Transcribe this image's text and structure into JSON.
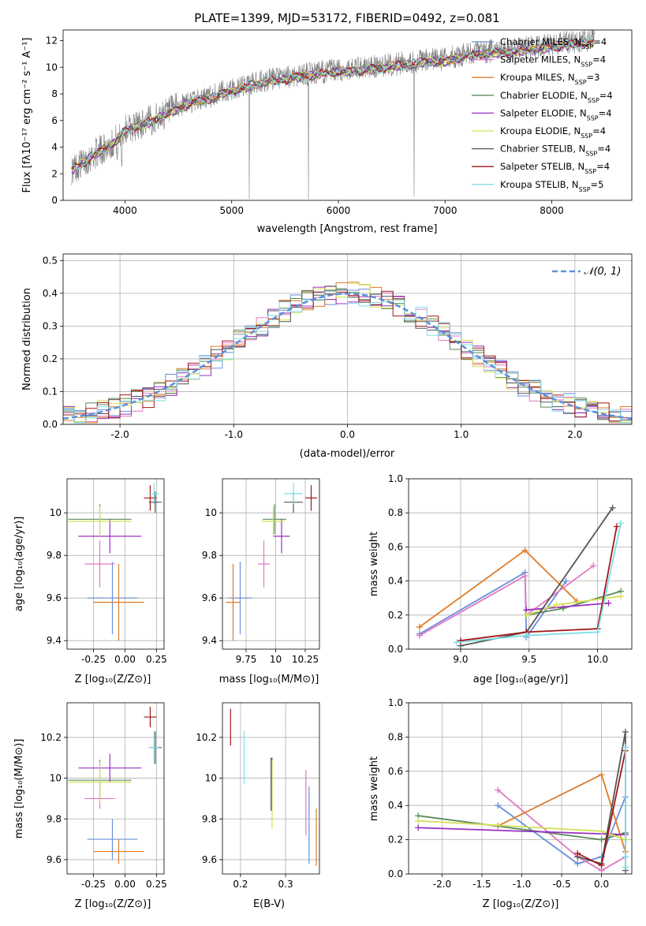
{
  "chart_data": [
    {
      "id": "spectrum",
      "type": "line",
      "title": "PLATE=1399, MJD=53172, FIBERID=0492, z=0.081",
      "xlabel": "wavelength [Angstrom, rest frame]",
      "ylabel": "Flux [fλ10⁻¹⁷ erg cm⁻² s⁻¹ A⁻¹]",
      "xlim": [
        3420,
        8750
      ],
      "ylim": [
        0,
        12.8
      ],
      "xticks": [
        4000,
        5000,
        6000,
        7000,
        8000
      ],
      "yticks": [
        0,
        2,
        4,
        6,
        8,
        10,
        12
      ],
      "grid": false,
      "legend_position": "top-right",
      "observed_color": "#808080",
      "observed": {
        "x": [
          3500,
          3600,
          3700,
          3800,
          3900,
          4000,
          4100,
          4200,
          4300,
          4400,
          4500,
          4600,
          4700,
          4800,
          4900,
          5000,
          5100,
          5200,
          5300,
          5400,
          5500,
          5600,
          5700,
          5800,
          5900,
          6000,
          6100,
          6200,
          6300,
          6400,
          6500,
          6600,
          6700,
          6800,
          6900,
          7000,
          7100,
          7200,
          7300,
          7400,
          7500,
          7600,
          7700,
          7800,
          7900,
          8000,
          8100,
          8200,
          8300,
          8400
        ],
        "y": [
          2.3,
          2.8,
          3.4,
          3.9,
          4.4,
          5.3,
          5.6,
          5.9,
          6.2,
          6.6,
          7.0,
          7.4,
          7.6,
          7.8,
          8.1,
          8.3,
          8.5,
          8.8,
          9.0,
          9.1,
          9.2,
          9.4,
          9.5,
          9.6,
          9.7,
          9.8,
          9.8,
          9.9,
          10.0,
          10.1,
          10.2,
          10.3,
          10.4,
          10.5,
          10.6,
          10.6,
          10.8,
          11.0,
          11.1,
          11.2,
          11.2,
          11.3,
          11.4,
          11.5,
          11.6,
          11.7,
          11.8,
          11.9,
          12.0,
          12.1
        ]
      },
      "legend": [
        {
          "label": "Chabrier MILES, N",
          "sub": "SSP",
          "suffix": "=4",
          "color": "#6a8fd8"
        },
        {
          "label": "Salpeter MILES, N",
          "sub": "SSP",
          "suffix": "=4",
          "color": "#e377c2"
        },
        {
          "label": "Kroupa MILES, N",
          "sub": "SSP",
          "suffix": "=3",
          "color": "#e07b28"
        },
        {
          "label": "Chabrier ELODIE, N",
          "sub": "SSP",
          "suffix": "=4",
          "color": "#5b8a5b"
        },
        {
          "label": "Salpeter ELODIE, N",
          "sub": "SSP",
          "suffix": "=4",
          "color": "#9b30c0"
        },
        {
          "label": "Kroupa ELODIE, N",
          "sub": "SSP",
          "suffix": "=4",
          "color": "#d4e157"
        },
        {
          "label": "Chabrier STELIB, N",
          "sub": "SSP",
          "suffix": "=4",
          "color": "#555555"
        },
        {
          "label": "Salpeter STELIB, N",
          "sub": "SSP",
          "suffix": "=4",
          "color": "#a01818"
        },
        {
          "label": "Kroupa STELIB, N",
          "sub": "SSP",
          "suffix": "=5",
          "color": "#7fdde6"
        }
      ]
    },
    {
      "id": "residuals",
      "type": "line",
      "xlabel": "(data-model)/error",
      "ylabel": "Normed distribution",
      "xlim": [
        -2.5,
        2.5
      ],
      "ylim": [
        0,
        0.52
      ],
      "xticks": [
        -2,
        -1,
        0,
        1,
        2
      ],
      "yticks": [
        0.0,
        0.1,
        0.2,
        0.3,
        0.4,
        0.5
      ],
      "grid": true,
      "legend_position": "top-right",
      "gaussian_label": "𝒩(0, 1)",
      "gaussian_color": "#5b8fd8"
    },
    {
      "id": "age_vs_Z",
      "type": "scatter",
      "xlabel": "Z [log₁₀(Z/Z⊙)]",
      "ylabel": "age  [log₁₀(age/yr)]",
      "xlim": [
        -0.46,
        0.31
      ],
      "ylim": [
        9.36,
        10.16
      ],
      "xticks": [
        -0.25,
        0.0,
        0.25
      ],
      "yticks": [
        9.4,
        9.6,
        9.8,
        10.0
      ],
      "grid": true,
      "points": [
        {
          "color": "#6a8fd8",
          "x": -0.1,
          "y": 9.6,
          "xerr": 0.2,
          "yerr": 0.17
        },
        {
          "color": "#e377c2",
          "x": -0.2,
          "y": 9.76,
          "xerr": 0.12,
          "yerr": 0.11
        },
        {
          "color": "#e07b28",
          "x": -0.05,
          "y": 9.58,
          "xerr": 0.2,
          "yerr": 0.18
        },
        {
          "color": "#5b8a5b",
          "x": -0.2,
          "y": 9.97,
          "xerr": 0.25,
          "yerr": 0.07
        },
        {
          "color": "#9b30c0",
          "x": -0.12,
          "y": 9.89,
          "xerr": 0.25,
          "yerr": 0.08
        },
        {
          "color": "#d4e157",
          "x": -0.2,
          "y": 9.96,
          "xerr": 0.25,
          "yerr": 0.07
        },
        {
          "color": "#555555",
          "x": 0.24,
          "y": 10.05,
          "xerr": 0.05,
          "yerr": 0.05
        },
        {
          "color": "#a01818",
          "x": 0.2,
          "y": 10.07,
          "xerr": 0.05,
          "yerr": 0.06
        },
        {
          "color": "#7fdde6",
          "x": 0.23,
          "y": 10.09,
          "xerr": 0.04,
          "yerr": 0.05
        }
      ]
    },
    {
      "id": "age_vs_mass",
      "type": "scatter",
      "xlabel": "mass [log₁₀(M/M⊙)]",
      "ylabel": "",
      "xlim": [
        9.55,
        10.37
      ],
      "ylim": [
        9.36,
        10.16
      ],
      "xticks": [
        9.75,
        10.0,
        10.25
      ],
      "yticks": [
        9.4,
        9.6,
        9.8,
        10.0
      ],
      "grid": true,
      "points": [
        {
          "color": "#6a8fd8",
          "x": 9.7,
          "y": 9.6,
          "xerr": 0.1,
          "yerr": 0.17
        },
        {
          "color": "#e377c2",
          "x": 9.9,
          "y": 9.76,
          "xerr": 0.05,
          "yerr": 0.11
        },
        {
          "color": "#e07b28",
          "x": 9.64,
          "y": 9.58,
          "xerr": 0.06,
          "yerr": 0.18
        },
        {
          "color": "#5b8a5b",
          "x": 9.99,
          "y": 9.97,
          "xerr": 0.1,
          "yerr": 0.07
        },
        {
          "color": "#9b30c0",
          "x": 10.05,
          "y": 9.89,
          "xerr": 0.07,
          "yerr": 0.08
        },
        {
          "color": "#d4e157",
          "x": 9.98,
          "y": 9.96,
          "xerr": 0.1,
          "yerr": 0.07
        },
        {
          "color": "#555555",
          "x": 10.15,
          "y": 10.05,
          "xerr": 0.08,
          "yerr": 0.05
        },
        {
          "color": "#a01818",
          "x": 10.3,
          "y": 10.07,
          "xerr": 0.05,
          "yerr": 0.06
        },
        {
          "color": "#7fdde6",
          "x": 10.15,
          "y": 10.09,
          "xerr": 0.08,
          "yerr": 0.05
        }
      ]
    },
    {
      "id": "weight_vs_age",
      "type": "line",
      "xlabel": "age  [log₁₀(age/yr)]",
      "ylabel": "mass weight",
      "xlim": [
        8.62,
        10.25
      ],
      "ylim": [
        0,
        1.0
      ],
      "xticks": [
        9.0,
        9.5,
        10.0
      ],
      "yticks": [
        0.0,
        0.2,
        0.4,
        0.6,
        0.8,
        1.0
      ],
      "grid": true,
      "series": [
        {
          "color": "#6a8fd8",
          "x": [
            8.7,
            9.47,
            9.48,
            9.77
          ],
          "y": [
            0.09,
            0.45,
            0.07,
            0.4
          ]
        },
        {
          "color": "#e377c2",
          "x": [
            8.7,
            9.47,
            9.48,
            9.97
          ],
          "y": [
            0.08,
            0.43,
            0.2,
            0.49
          ]
        },
        {
          "color": "#e07b28",
          "x": [
            8.7,
            9.47,
            9.85
          ],
          "y": [
            0.13,
            0.58,
            0.28
          ]
        },
        {
          "color": "#5b8a5b",
          "x": [
            9.48,
            9.75,
            10.17
          ],
          "y": [
            0.2,
            0.24,
            0.34
          ]
        },
        {
          "color": "#9b30c0",
          "x": [
            9.48,
            10.08
          ],
          "y": [
            0.23,
            0.27
          ]
        },
        {
          "color": "#d4e157",
          "x": [
            9.48,
            9.7,
            10.17
          ],
          "y": [
            0.2,
            0.26,
            0.31
          ]
        },
        {
          "color": "#555555",
          "x": [
            9.0,
            9.48,
            10.11
          ],
          "y": [
            0.02,
            0.1,
            0.83
          ]
        },
        {
          "color": "#a01818",
          "x": [
            9.0,
            9.48,
            10.0,
            10.14
          ],
          "y": [
            0.05,
            0.1,
            0.12,
            0.72
          ]
        },
        {
          "color": "#7fdde6",
          "x": [
            8.97,
            9.48,
            10.0,
            10.17
          ],
          "y": [
            0.04,
            0.08,
            0.1,
            0.74
          ]
        }
      ]
    },
    {
      "id": "mass_vs_Z",
      "type": "scatter",
      "xlabel": "Z [log₁₀(Z/Z⊙)]",
      "ylabel": "mass [log₁₀(M/M⊙)]",
      "xlim": [
        -0.46,
        0.31
      ],
      "ylim": [
        9.53,
        10.37
      ],
      "xticks": [
        -0.25,
        0.0,
        0.25
      ],
      "yticks": [
        9.6,
        9.8,
        10.0,
        10.2
      ],
      "grid": true,
      "points": [
        {
          "color": "#6a8fd8",
          "x": -0.1,
          "y": 9.7,
          "xerr": 0.2,
          "yerr": 0.1
        },
        {
          "color": "#e377c2",
          "x": -0.2,
          "y": 9.9,
          "xerr": 0.12,
          "yerr": 0.05
        },
        {
          "color": "#e07b28",
          "x": -0.05,
          "y": 9.64,
          "xerr": 0.2,
          "yerr": 0.06
        },
        {
          "color": "#5b8a5b",
          "x": -0.2,
          "y": 9.99,
          "xerr": 0.25,
          "yerr": 0.1
        },
        {
          "color": "#9b30c0",
          "x": -0.12,
          "y": 10.05,
          "xerr": 0.25,
          "yerr": 0.07
        },
        {
          "color": "#d4e157",
          "x": -0.2,
          "y": 9.98,
          "xerr": 0.25,
          "yerr": 0.1
        },
        {
          "color": "#555555",
          "x": 0.24,
          "y": 10.15,
          "xerr": 0.05,
          "yerr": 0.08
        },
        {
          "color": "#a01818",
          "x": 0.2,
          "y": 10.3,
          "xerr": 0.05,
          "yerr": 0.05
        },
        {
          "color": "#7fdde6",
          "x": 0.23,
          "y": 10.15,
          "xerr": 0.04,
          "yerr": 0.08
        }
      ]
    },
    {
      "id": "mass_vs_ebv",
      "type": "scatter",
      "xlabel": "E(B-V)",
      "ylabel": "",
      "xlim": [
        0.16,
        0.375
      ],
      "ylim": [
        9.53,
        10.37
      ],
      "xticks": [
        0.2,
        0.3
      ],
      "yticks": [
        9.6,
        9.8,
        10.0,
        10.2
      ],
      "grid": true,
      "points": [
        {
          "color": "#6a8fd8",
          "x": 0.352,
          "y": 9.77,
          "xerr": 0,
          "yerr": 0.19
        },
        {
          "color": "#e377c2",
          "x": 0.345,
          "y": 9.88,
          "xerr": 0,
          "yerr": 0.16
        },
        {
          "color": "#e07b28",
          "x": 0.368,
          "y": 9.71,
          "xerr": 0,
          "yerr": 0.14
        },
        {
          "color": "#5b8a5b",
          "x": 0.268,
          "y": 9.97,
          "xerr": 0,
          "yerr": 0.13
        },
        {
          "color": "#9b30c0",
          "x": 0.27,
          "y": 9.97,
          "xerr": 0,
          "yerr": 0.13
        },
        {
          "color": "#d4e157",
          "x": 0.27,
          "y": 9.92,
          "xerr": 0,
          "yerr": 0.17
        },
        {
          "color": "#555555",
          "x": 0.268,
          "y": 9.97,
          "xerr": 0,
          "yerr": 0.13
        },
        {
          "color": "#a01818",
          "x": 0.178,
          "y": 10.25,
          "xerr": 0,
          "yerr": 0.09
        },
        {
          "color": "#7fdde6",
          "x": 0.208,
          "y": 10.1,
          "xerr": 0,
          "yerr": 0.13
        }
      ]
    },
    {
      "id": "weight_vs_Z",
      "type": "line",
      "xlabel": "Z [log₁₀(Z/Z⊙)]",
      "ylabel": "mass weight",
      "xlim": [
        -2.42,
        0.38
      ],
      "ylim": [
        0,
        1.0
      ],
      "xticks": [
        -2.0,
        -1.5,
        -1.0,
        -0.5,
        0.0
      ],
      "yticks": [
        0.0,
        0.2,
        0.4,
        0.6,
        0.8,
        1.0
      ],
      "grid": true,
      "series": [
        {
          "color": "#6a8fd8",
          "x": [
            -1.3,
            -0.3,
            0.0,
            0.3
          ],
          "y": [
            0.4,
            0.06,
            0.1,
            0.45
          ]
        },
        {
          "color": "#e377c2",
          "x": [
            -1.3,
            -0.3,
            0.0,
            0.3
          ],
          "y": [
            0.49,
            0.1,
            0.02,
            0.1
          ]
        },
        {
          "color": "#e07b28",
          "x": [
            -1.3,
            0.0,
            0.3
          ],
          "y": [
            0.28,
            0.58,
            0.13
          ]
        },
        {
          "color": "#5b8a5b",
          "x": [
            -2.3,
            0.0,
            0.3
          ],
          "y": [
            0.34,
            0.2,
            0.24
          ]
        },
        {
          "color": "#9b30c0",
          "x": [
            -2.3,
            0.3
          ],
          "y": [
            0.27,
            0.23
          ]
        },
        {
          "color": "#d4e157",
          "x": [
            -2.3,
            0.0,
            0.3
          ],
          "y": [
            0.31,
            0.25,
            0.2
          ]
        },
        {
          "color": "#555555",
          "x": [
            -0.3,
            0.0,
            0.3,
            0.3
          ],
          "y": [
            0.1,
            0.06,
            0.83,
            0.02
          ]
        },
        {
          "color": "#a01818",
          "x": [
            -0.3,
            0.0,
            0.3
          ],
          "y": [
            0.12,
            0.05,
            0.72
          ]
        },
        {
          "color": "#7fdde6",
          "x": [
            0.3,
            0.3,
            0.3
          ],
          "y": [
            0.74,
            0.04,
            0.1
          ]
        }
      ]
    }
  ]
}
